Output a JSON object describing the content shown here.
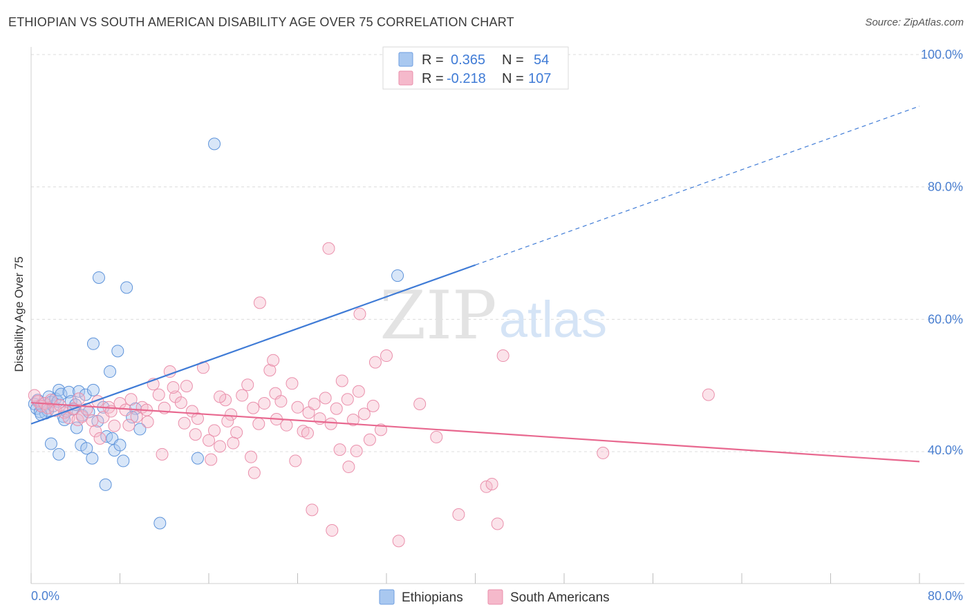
{
  "title": "ETHIOPIAN VS SOUTH AMERICAN DISABILITY AGE OVER 75 CORRELATION CHART",
  "source": "Source: ZipAtlas.com",
  "watermark": {
    "zip": "ZIP",
    "atlas": "atlas"
  },
  "colors": {
    "blue": "#3f7bd6",
    "blue_fill": "#a9c8f0",
    "pink": "#e8688f",
    "pink_fill": "#f5b9cb",
    "tick": "#4a7fd0"
  },
  "legend": {
    "series": [
      {
        "r_label": "R = ",
        "r_value": "0.365",
        "n_label": "N = ",
        "n_value": "54"
      },
      {
        "r_label": "R = ",
        "r_value": "-0.218",
        "n_label": "N = ",
        "n_value": "107"
      }
    ]
  },
  "chart_data": {
    "type": "scatter",
    "title": "ETHIOPIAN VS SOUTH AMERICAN DISABILITY AGE OVER 75 CORRELATION CHART",
    "xlabel": "",
    "ylabel": "Disability Age Over 75",
    "xlim": [
      0,
      80
    ],
    "ylim": [
      20,
      102
    ],
    "x_tick_labels": [
      "0.0%",
      "80.0%"
    ],
    "y_ticks": [
      40,
      60,
      80,
      100
    ],
    "y_tick_labels": [
      "40.0%",
      "60.0%",
      "80.0%",
      "100.0%"
    ],
    "series": [
      {
        "name": "Ethiopians",
        "color": "#3f7bd6",
        "trend": {
          "x0": 0,
          "y0": 44.2,
          "x1": 40,
          "y1": 68.2,
          "dashed_to_x": 80,
          "dashed_to_y": 92.2
        },
        "points": [
          [
            0.3,
            47.2
          ],
          [
            0.5,
            46.5
          ],
          [
            0.6,
            47.8
          ],
          [
            0.8,
            46.0
          ],
          [
            1.0,
            46.8
          ],
          [
            1.2,
            47.3
          ],
          [
            1.3,
            45.8
          ],
          [
            1.5,
            46.2
          ],
          [
            1.6,
            48.3
          ],
          [
            1.8,
            47.5
          ],
          [
            2.0,
            46.9
          ],
          [
            2.2,
            48.0
          ],
          [
            2.4,
            47.6
          ],
          [
            2.5,
            49.3
          ],
          [
            2.7,
            48.7
          ],
          [
            2.9,
            45.3
          ],
          [
            3.0,
            44.8
          ],
          [
            3.2,
            46.1
          ],
          [
            3.4,
            49.0
          ],
          [
            3.6,
            47.6
          ],
          [
            3.8,
            46.4
          ],
          [
            4.0,
            47.1
          ],
          [
            4.3,
            49.1
          ],
          [
            4.6,
            45.5
          ],
          [
            4.9,
            48.6
          ],
          [
            5.2,
            46.0
          ],
          [
            5.6,
            49.3
          ],
          [
            6.0,
            44.6
          ],
          [
            6.5,
            46.7
          ],
          [
            6.8,
            42.3
          ],
          [
            7.3,
            42.0
          ],
          [
            7.5,
            40.2
          ],
          [
            8.0,
            41.0
          ],
          [
            8.3,
            38.6
          ],
          [
            1.8,
            41.2
          ],
          [
            2.5,
            39.6
          ],
          [
            4.5,
            41.0
          ],
          [
            5.0,
            40.5
          ],
          [
            5.5,
            39.0
          ],
          [
            6.7,
            35.0
          ],
          [
            6.1,
            66.3
          ],
          [
            8.6,
            64.8
          ],
          [
            5.6,
            56.3
          ],
          [
            7.8,
            55.2
          ],
          [
            7.1,
            52.1
          ],
          [
            16.5,
            86.5
          ],
          [
            33.0,
            66.6
          ],
          [
            15.0,
            39.0
          ],
          [
            11.6,
            29.2
          ],
          [
            9.8,
            43.4
          ],
          [
            0.9,
            45.6
          ],
          [
            9.4,
            46.5
          ],
          [
            9.1,
            45.2
          ],
          [
            4.1,
            43.6
          ]
        ]
      },
      {
        "name": "South Americans",
        "color": "#e8688f",
        "trend": {
          "x0": 0,
          "y0": 47.4,
          "x1": 80,
          "y1": 38.5
        },
        "points": [
          [
            0.3,
            48.5
          ],
          [
            0.6,
            47.6
          ],
          [
            0.9,
            46.9
          ],
          [
            1.2,
            47.3
          ],
          [
            1.5,
            46.6
          ],
          [
            1.8,
            47.8
          ],
          [
            2.2,
            46.2
          ],
          [
            2.6,
            47.0
          ],
          [
            3.0,
            45.9
          ],
          [
            3.4,
            45.1
          ],
          [
            3.8,
            46.5
          ],
          [
            4.2,
            44.8
          ],
          [
            4.6,
            45.3
          ],
          [
            5.0,
            46.4
          ],
          [
            5.5,
            44.7
          ],
          [
            6.0,
            47.6
          ],
          [
            6.5,
            45.2
          ],
          [
            7.0,
            46.7
          ],
          [
            7.5,
            43.9
          ],
          [
            8.0,
            47.3
          ],
          [
            8.5,
            46.3
          ],
          [
            9.0,
            47.9
          ],
          [
            9.5,
            45.3
          ],
          [
            10.0,
            46.7
          ],
          [
            10.5,
            44.5
          ],
          [
            11.0,
            50.2
          ],
          [
            11.5,
            48.6
          ],
          [
            12.0,
            46.6
          ],
          [
            12.5,
            52.1
          ],
          [
            13.0,
            48.3
          ],
          [
            13.5,
            47.4
          ],
          [
            14.0,
            49.9
          ],
          [
            14.5,
            46.1
          ],
          [
            15.0,
            45.0
          ],
          [
            15.5,
            52.7
          ],
          [
            16.0,
            41.7
          ],
          [
            16.5,
            43.2
          ],
          [
            17.0,
            40.8
          ],
          [
            17.5,
            47.8
          ],
          [
            18.0,
            45.6
          ],
          [
            18.5,
            42.9
          ],
          [
            19.0,
            48.5
          ],
          [
            19.5,
            50.1
          ],
          [
            20.0,
            46.6
          ],
          [
            20.5,
            44.2
          ],
          [
            21.0,
            47.3
          ],
          [
            21.5,
            52.3
          ],
          [
            22.0,
            48.8
          ],
          [
            22.5,
            47.6
          ],
          [
            23.0,
            44.0
          ],
          [
            23.5,
            50.3
          ],
          [
            24.0,
            46.7
          ],
          [
            24.5,
            43.1
          ],
          [
            25.0,
            45.9
          ],
          [
            25.5,
            47.2
          ],
          [
            26.0,
            45.0
          ],
          [
            26.5,
            48.1
          ],
          [
            27.0,
            44.2
          ],
          [
            27.5,
            46.5
          ],
          [
            28.0,
            50.7
          ],
          [
            28.5,
            47.9
          ],
          [
            29.0,
            44.8
          ],
          [
            29.5,
            49.1
          ],
          [
            30.0,
            45.7
          ],
          [
            30.5,
            41.8
          ],
          [
            31.0,
            53.5
          ],
          [
            31.5,
            43.3
          ],
          [
            32.0,
            54.5
          ],
          [
            17.0,
            48.3
          ],
          [
            16.2,
            38.8
          ],
          [
            19.8,
            39.2
          ],
          [
            21.8,
            53.8
          ],
          [
            23.8,
            38.6
          ],
          [
            25.3,
            31.2
          ],
          [
            27.1,
            28.1
          ],
          [
            26.8,
            70.7
          ],
          [
            20.6,
            62.5
          ],
          [
            29.6,
            60.8
          ],
          [
            22.1,
            44.9
          ],
          [
            24.9,
            42.8
          ],
          [
            13.8,
            44.3
          ],
          [
            10.4,
            46.3
          ],
          [
            12.8,
            49.7
          ],
          [
            14.8,
            42.6
          ],
          [
            17.7,
            44.6
          ],
          [
            27.8,
            40.3
          ],
          [
            28.6,
            37.7
          ],
          [
            29.3,
            40.1
          ],
          [
            33.1,
            26.5
          ],
          [
            38.5,
            30.5
          ],
          [
            41.0,
            34.7
          ],
          [
            41.5,
            35.1
          ],
          [
            42.0,
            29.1
          ],
          [
            42.5,
            54.5
          ],
          [
            35.0,
            47.2
          ],
          [
            36.5,
            42.2
          ],
          [
            51.5,
            39.8
          ],
          [
            61.0,
            48.6
          ],
          [
            4.3,
            48.0
          ],
          [
            5.8,
            43.1
          ],
          [
            6.2,
            42.0
          ],
          [
            8.8,
            44.0
          ],
          [
            11.8,
            39.6
          ],
          [
            18.2,
            41.3
          ],
          [
            30.8,
            46.9
          ],
          [
            20.1,
            36.8
          ],
          [
            7.2,
            46.1
          ]
        ]
      }
    ]
  },
  "bottom_legend": [
    "Ethiopians",
    "South Americans"
  ]
}
